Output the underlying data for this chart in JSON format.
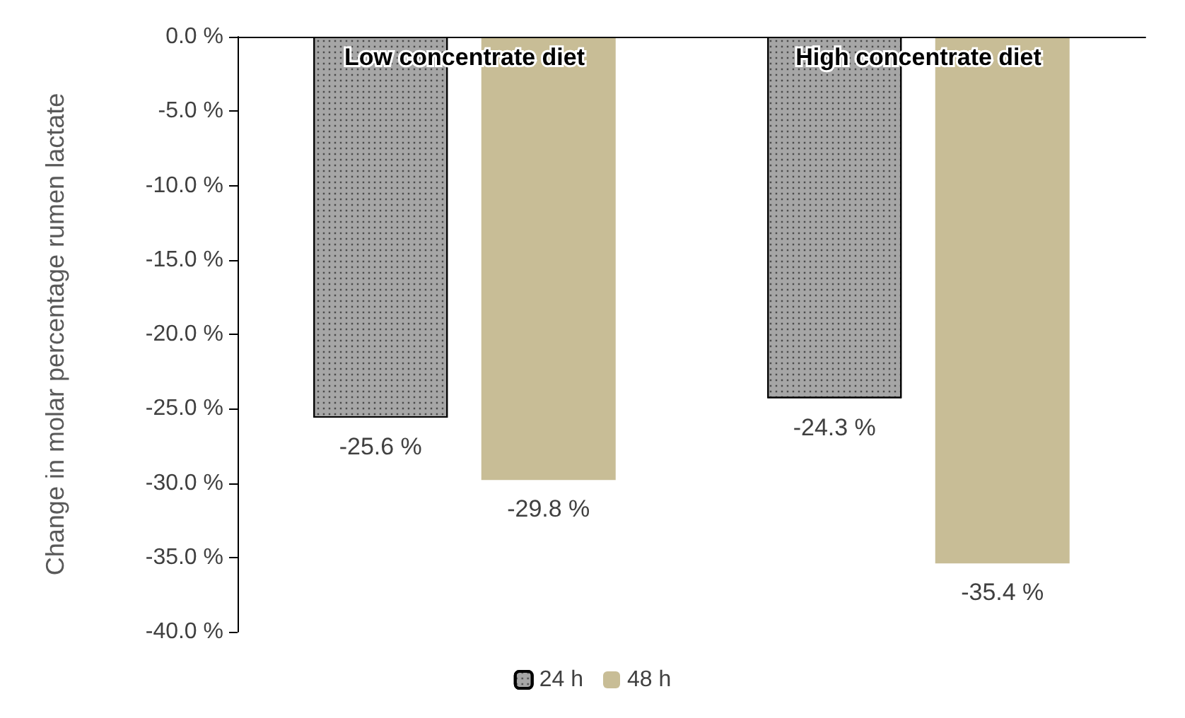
{
  "chart_data": {
    "type": "bar",
    "ylabel": "Change in molar percentage rumen lactate",
    "categories": [
      "Low concentrate diet",
      "High concentrate diet"
    ],
    "series": [
      {
        "name": "24 h",
        "color": "#a6a6a6",
        "values": [
          -25.6,
          -24.3
        ],
        "value_labels": [
          "-25.6 %",
          "-24.3 %"
        ]
      },
      {
        "name": "48 h",
        "color": "#c8bd96",
        "values": [
          -29.8,
          -35.4
        ],
        "value_labels": [
          "-29.8 %",
          "-35.4 %"
        ]
      }
    ],
    "ylim": [
      -40,
      0
    ],
    "yticks": [
      {
        "value": -40,
        "label": "-40.0 %"
      },
      {
        "value": -35,
        "label": "-35.0 %"
      },
      {
        "value": -30,
        "label": "-30.0 %"
      },
      {
        "value": -25,
        "label": "-25.0 %"
      },
      {
        "value": -20,
        "label": "-20.0 %"
      },
      {
        "value": -15,
        "label": "-15.0 %"
      },
      {
        "value": -10,
        "label": "-10.0 %"
      },
      {
        "value": -5,
        "label": "-5.0 %"
      },
      {
        "value": 0,
        "label": "0.0 %"
      }
    ],
    "grid": false,
    "legend": "bottom"
  }
}
